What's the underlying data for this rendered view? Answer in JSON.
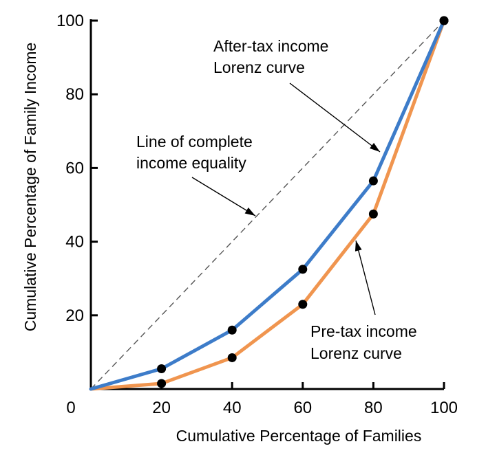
{
  "chart_data": {
    "type": "line",
    "xlabel": "Cumulative Percentage of Families",
    "ylabel": "Cumulative Percentage of Family Income",
    "xlim": [
      0,
      100
    ],
    "ylim": [
      0,
      100
    ],
    "x_ticks": [
      0,
      20,
      40,
      60,
      80,
      100
    ],
    "y_ticks": [
      20,
      40,
      60,
      80,
      100
    ],
    "x_tick_labels": [
      "0",
      "20",
      "40",
      "60",
      "80",
      "100"
    ],
    "y_tick_labels": [
      "20",
      "40",
      "60",
      "80",
      "100"
    ],
    "series": [
      {
        "name": "After-tax income Lorenz curve",
        "color": "#3d7cc9",
        "x": [
          0,
          20,
          40,
          60,
          80,
          100
        ],
        "y": [
          0,
          5.5,
          16,
          32.5,
          56.5,
          100
        ]
      },
      {
        "name": "Pre-tax income Lorenz curve",
        "color": "#f0954f",
        "x": [
          0,
          20,
          40,
          60,
          80,
          100
        ],
        "y": [
          0,
          1.5,
          8.5,
          23,
          47.5,
          100
        ]
      },
      {
        "name": "Line of complete income equality",
        "color": "#555555",
        "x": [
          0,
          100
        ],
        "y": [
          0,
          100
        ]
      }
    ],
    "annotations": [
      {
        "lines": [
          "After-tax income",
          "Lorenz curve"
        ]
      },
      {
        "lines": [
          "Line of complete",
          "income equality"
        ]
      },
      {
        "lines": [
          "Pre-tax income",
          "Lorenz curve"
        ]
      }
    ]
  }
}
